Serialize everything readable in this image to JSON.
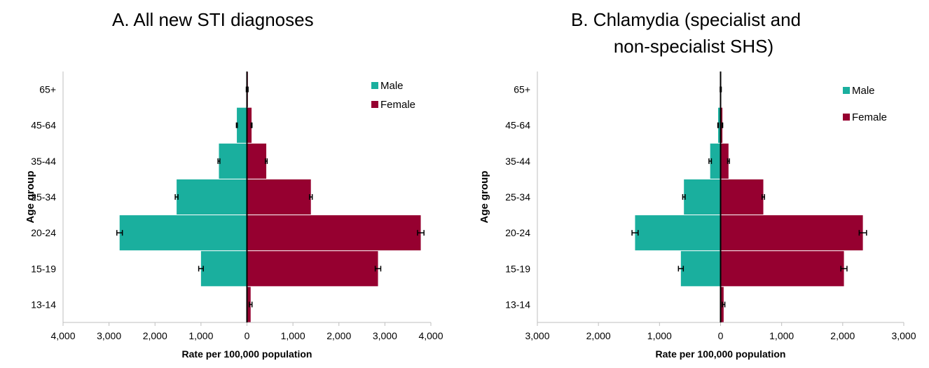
{
  "chart_data": [
    {
      "type": "bar",
      "orientation": "horizontal",
      "layout": "population-pyramid",
      "title": "A.  All new STI diagnoses",
      "xlabel": "Rate per 100,000 population",
      "ylabel": "Age group",
      "categories": [
        "13-14",
        "15-19",
        "20-24",
        "25-34",
        "35-44",
        "45-64",
        "65+"
      ],
      "xlim": [
        -4000,
        4000
      ],
      "xticks": [
        -4000,
        -3000,
        -2000,
        -1000,
        0,
        1000,
        2000,
        3000,
        4000
      ],
      "xtick_labels": [
        "4,000",
        "3,000",
        "2,000",
        "1,000",
        "0",
        "1,000",
        "2,000",
        "3,000",
        "4,000"
      ],
      "legend_position": "top-right",
      "series": [
        {
          "name": "Male",
          "color": "#1aaf9e",
          "values": [
            0,
            1000,
            2770,
            1530,
            610,
            220,
            10
          ],
          "error": [
            0,
            50,
            60,
            30,
            20,
            10,
            5
          ]
        },
        {
          "name": "Female",
          "color": "#960030",
          "values": [
            80,
            2850,
            3780,
            1390,
            420,
            100,
            20
          ],
          "error": [
            30,
            60,
            70,
            30,
            20,
            10,
            5
          ]
        }
      ]
    },
    {
      "type": "bar",
      "orientation": "horizontal",
      "layout": "population-pyramid",
      "title_lines": [
        "B.  Chlamydia (specialist and",
        "non-specialist SHS)"
      ],
      "xlabel": "Rate per 100,000 population",
      "ylabel": "Age group",
      "categories": [
        "13-14",
        "15-19",
        "20-24",
        "25-34",
        "35-44",
        "45-64",
        "65+"
      ],
      "xlim": [
        -3000,
        3000
      ],
      "xticks": [
        -3000,
        -2000,
        -1000,
        0,
        1000,
        2000,
        3000
      ],
      "xtick_labels": [
        "3,000",
        "2,000",
        "1,000",
        "0",
        "1,000",
        "2,000",
        "3,000"
      ],
      "legend_position": "top-right",
      "series": [
        {
          "name": "Male",
          "color": "#1aaf9e",
          "values": [
            0,
            650,
            1400,
            600,
            170,
            40,
            5
          ],
          "error": [
            0,
            40,
            50,
            20,
            20,
            5,
            2
          ]
        },
        {
          "name": "Female",
          "color": "#960030",
          "values": [
            50,
            2020,
            2330,
            700,
            130,
            30,
            10
          ],
          "error": [
            20,
            50,
            60,
            20,
            15,
            5,
            2
          ]
        }
      ]
    }
  ]
}
